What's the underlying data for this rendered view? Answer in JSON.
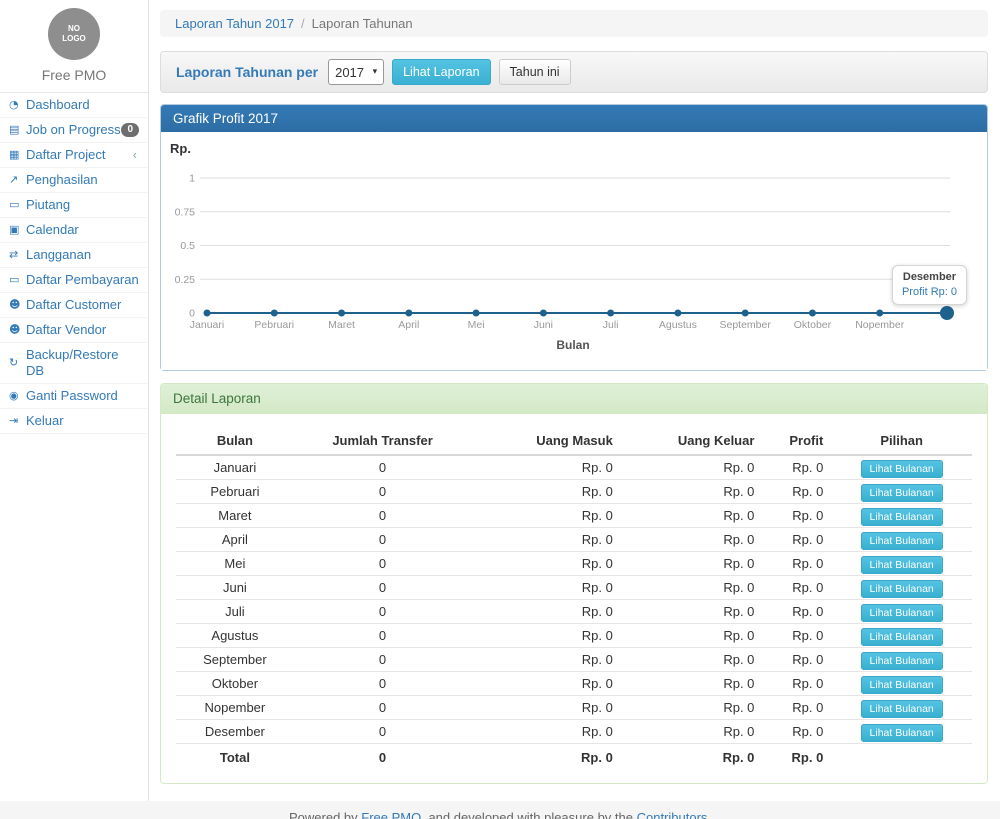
{
  "app": {
    "logo_text": "NO\nLOGO",
    "brand": "Free PMO"
  },
  "icons": {
    "dashboard-icon": "◔",
    "tasks-icon": "▤",
    "table-icon": "▦",
    "line-chart-icon": "↗",
    "money-icon": "▭",
    "calendar-icon": "▣",
    "retweet-icon": "⇄",
    "users-icon": "☻",
    "refresh-icon": "↻",
    "lock-icon": "◉",
    "sign-out-icon": "⇥",
    "chevron-left": "‹",
    "caret-down": "▾"
  },
  "sidebar": {
    "items": [
      {
        "icon": "dashboard-icon",
        "label": "Dashboard"
      },
      {
        "icon": "tasks-icon",
        "label": "Job on Progress",
        "badge": "0"
      },
      {
        "icon": "table-icon",
        "label": "Daftar Project",
        "chevron": "‹"
      },
      {
        "icon": "line-chart-icon",
        "label": "Penghasilan"
      },
      {
        "icon": "money-icon",
        "label": "Piutang"
      },
      {
        "icon": "calendar-icon",
        "label": "Calendar"
      },
      {
        "icon": "retweet-icon",
        "label": "Langganan"
      },
      {
        "icon": "money-icon",
        "label": "Daftar Pembayaran"
      },
      {
        "icon": "users-icon",
        "label": "Daftar Customer"
      },
      {
        "icon": "users-icon",
        "label": "Daftar Vendor"
      },
      {
        "icon": "refresh-icon",
        "label": "Backup/Restore DB"
      },
      {
        "icon": "lock-icon",
        "label": "Ganti Password"
      },
      {
        "icon": "sign-out-icon",
        "label": "Keluar"
      }
    ]
  },
  "breadcrumb": {
    "link": "Laporan Tahun 2017",
    "separator": "/",
    "current": "Laporan Tahunan"
  },
  "toolbar": {
    "label": "Laporan Tahunan per",
    "year_selected": "2017",
    "view_button": "Lihat Laporan",
    "this_year_button": "Tahun ini"
  },
  "chart_panel": {
    "title": "Grafik Profit 2017"
  },
  "chart_data": {
    "type": "line",
    "title": "Grafik Profit 2017",
    "x": [
      "Januari",
      "Pebruari",
      "Maret",
      "April",
      "Mei",
      "Juni",
      "Juli",
      "Agustus",
      "September",
      "Oktober",
      "Nopember",
      "Desember"
    ],
    "series": [
      {
        "name": "Profit",
        "values": [
          0,
          0,
          0,
          0,
          0,
          0,
          0,
          0,
          0,
          0,
          0,
          0
        ]
      }
    ],
    "ylabel": "Rp.",
    "xlabel": "Bulan",
    "ylim": [
      0,
      1
    ],
    "yticks": [
      0,
      0.25,
      0.5,
      0.75,
      1
    ],
    "grid": true,
    "legend": false,
    "hide_last_x_label": true,
    "line_color": "#1f618d",
    "grid_color": "#dddddd",
    "tick_color": "#999999",
    "tooltip": {
      "title": "Desember",
      "value": "Profit Rp: 0",
      "point_index": 11
    }
  },
  "detail_panel": {
    "title": "Detail Laporan",
    "columns": [
      "Bulan",
      "Jumlah Transfer",
      "Uang Masuk",
      "Uang Keluar",
      "Profit",
      "Pilihan"
    ],
    "rows": [
      {
        "bulan": "Januari",
        "transfer": "0",
        "masuk": "Rp. 0",
        "keluar": "Rp. 0",
        "profit": "Rp. 0",
        "action": "Lihat Bulanan"
      },
      {
        "bulan": "Pebruari",
        "transfer": "0",
        "masuk": "Rp. 0",
        "keluar": "Rp. 0",
        "profit": "Rp. 0",
        "action": "Lihat Bulanan"
      },
      {
        "bulan": "Maret",
        "transfer": "0",
        "masuk": "Rp. 0",
        "keluar": "Rp. 0",
        "profit": "Rp. 0",
        "action": "Lihat Bulanan"
      },
      {
        "bulan": "April",
        "transfer": "0",
        "masuk": "Rp. 0",
        "keluar": "Rp. 0",
        "profit": "Rp. 0",
        "action": "Lihat Bulanan"
      },
      {
        "bulan": "Mei",
        "transfer": "0",
        "masuk": "Rp. 0",
        "keluar": "Rp. 0",
        "profit": "Rp. 0",
        "action": "Lihat Bulanan"
      },
      {
        "bulan": "Juni",
        "transfer": "0",
        "masuk": "Rp. 0",
        "keluar": "Rp. 0",
        "profit": "Rp. 0",
        "action": "Lihat Bulanan"
      },
      {
        "bulan": "Juli",
        "transfer": "0",
        "masuk": "Rp. 0",
        "keluar": "Rp. 0",
        "profit": "Rp. 0",
        "action": "Lihat Bulanan"
      },
      {
        "bulan": "Agustus",
        "transfer": "0",
        "masuk": "Rp. 0",
        "keluar": "Rp. 0",
        "profit": "Rp. 0",
        "action": "Lihat Bulanan"
      },
      {
        "bulan": "September",
        "transfer": "0",
        "masuk": "Rp. 0",
        "keluar": "Rp. 0",
        "profit": "Rp. 0",
        "action": "Lihat Bulanan"
      },
      {
        "bulan": "Oktober",
        "transfer": "0",
        "masuk": "Rp. 0",
        "keluar": "Rp. 0",
        "profit": "Rp. 0",
        "action": "Lihat Bulanan"
      },
      {
        "bulan": "Nopember",
        "transfer": "0",
        "masuk": "Rp. 0",
        "keluar": "Rp. 0",
        "profit": "Rp. 0",
        "action": "Lihat Bulanan"
      },
      {
        "bulan": "Desember",
        "transfer": "0",
        "masuk": "Rp. 0",
        "keluar": "Rp. 0",
        "profit": "Rp. 0",
        "action": "Lihat Bulanan"
      }
    ],
    "total": {
      "bulan": "Total",
      "transfer": "0",
      "masuk": "Rp. 0",
      "keluar": "Rp. 0",
      "profit": "Rp. 0"
    }
  },
  "footer": {
    "prefix": "Powered by ",
    "link1": "Free PMO",
    "middle": ", and developed with pleasure by the ",
    "link2": "Contributors."
  }
}
